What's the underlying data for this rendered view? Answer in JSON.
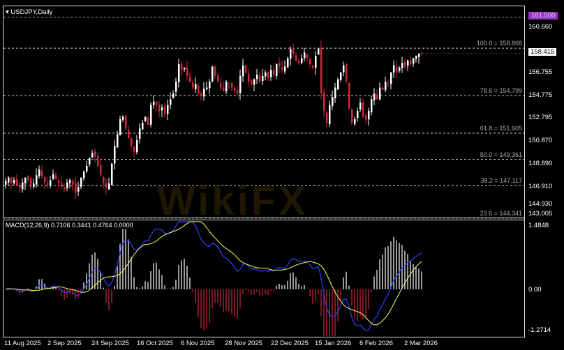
{
  "window": {
    "title": "USDJPY,Daily"
  },
  "watermark": "WikiFX",
  "colors": {
    "bull": "#ffffff",
    "bear": "#d0283c",
    "macd_signal": "#ffff66",
    "macd_line": "#3040ff",
    "highlight_level": "#9932cc",
    "current_price_bg": "#ffffff"
  },
  "price_axis": {
    "ticks": [
      "160.660",
      "156.755",
      "154.775",
      "152.795",
      "150.870",
      "148.890",
      "146.910",
      "144.930",
      "143.005"
    ],
    "highlight_level": "161.500",
    "current_price": "158.415"
  },
  "fib_levels": [
    {
      "label": "100.0 = 158.868",
      "value": 158.868
    },
    {
      "label": "78.6 = 154.799",
      "value": 154.799
    },
    {
      "label": "61.8 = 151.605",
      "value": 151.605
    },
    {
      "label": "50.0 = 149.361",
      "value": 149.361
    },
    {
      "label": "38.2 = 147.117",
      "value": 147.117
    },
    {
      "label": "23.6 = 144.341",
      "value": 144.341
    }
  ],
  "macd": {
    "label": "MACD(12,26,9) 0.7106 0.3441 0.4764 0.0000",
    "ticks": [
      "1.4848",
      "0.00",
      "-1.2714"
    ]
  },
  "date_axis": [
    "11 Aug 2025",
    "2 Sep 2025",
    "24 Sep 2025",
    "16 Oct 2025",
    "6 Nov 2025",
    "28 Nov 2025",
    "22 Dec 2025",
    "15 Jan 2026",
    "6 Feb 2026",
    "2 Mar 2026"
  ],
  "chart_data": {
    "type": "candlestick",
    "symbol": "USDJPY",
    "timeframe": "Daily",
    "ylim": [
      143.005,
      161.5
    ],
    "closes": [
      147.5,
      147.8,
      147.3,
      147.6,
      147.2,
      146.9,
      147.4,
      147.8,
      147.6,
      147.0,
      147.3,
      148.0,
      148.5,
      147.9,
      147.4,
      147.2,
      147.6,
      148.1,
      147.7,
      147.3,
      147.0,
      146.8,
      147.4,
      147.6,
      147.2,
      146.5,
      147.0,
      147.8,
      148.3,
      148.8,
      149.5,
      149.9,
      149.6,
      148.8,
      148.0,
      147.3,
      146.9,
      147.3,
      149.0,
      150.5,
      151.5,
      152.8,
      153.0,
      152.0,
      151.2,
      150.5,
      150.0,
      151.0,
      152.0,
      152.5,
      153.0,
      152.3,
      154.0,
      154.3,
      154.0,
      153.5,
      153.8,
      153.2,
      154.0,
      154.5,
      155.0,
      156.0,
      157.5,
      157.0,
      157.2,
      156.5,
      156.0,
      155.5,
      155.8,
      155.0,
      154.8,
      155.4,
      155.5,
      156.0,
      157.3,
      156.5,
      156.0,
      155.5,
      155.2,
      156.0,
      155.8,
      155.5,
      155.2,
      155.0,
      156.5,
      157.4,
      156.8,
      156.0,
      155.8,
      156.2,
      156.6,
      156.0,
      156.5,
      156.8,
      156.3,
      157.0,
      156.6,
      157.5,
      157.3,
      157.0,
      157.3,
      158.0,
      158.8,
      158.4,
      157.8,
      157.6,
      158.0,
      158.5,
      158.0,
      157.5,
      157.2,
      158.2,
      158.8,
      155.0,
      153.5,
      152.5,
      154.0,
      154.7,
      155.5,
      156.2,
      156.8,
      157.4,
      156.0,
      153.7,
      152.5,
      152.8,
      153.5,
      154.2,
      153.0,
      152.8,
      153.5,
      154.5,
      155.0,
      154.5,
      155.5,
      155.3,
      156.0,
      155.8,
      156.8,
      157.4,
      156.8,
      157.2,
      157.6,
      157.3,
      157.8,
      157.5,
      158.0,
      158.2,
      158.4,
      158.415
    ]
  }
}
